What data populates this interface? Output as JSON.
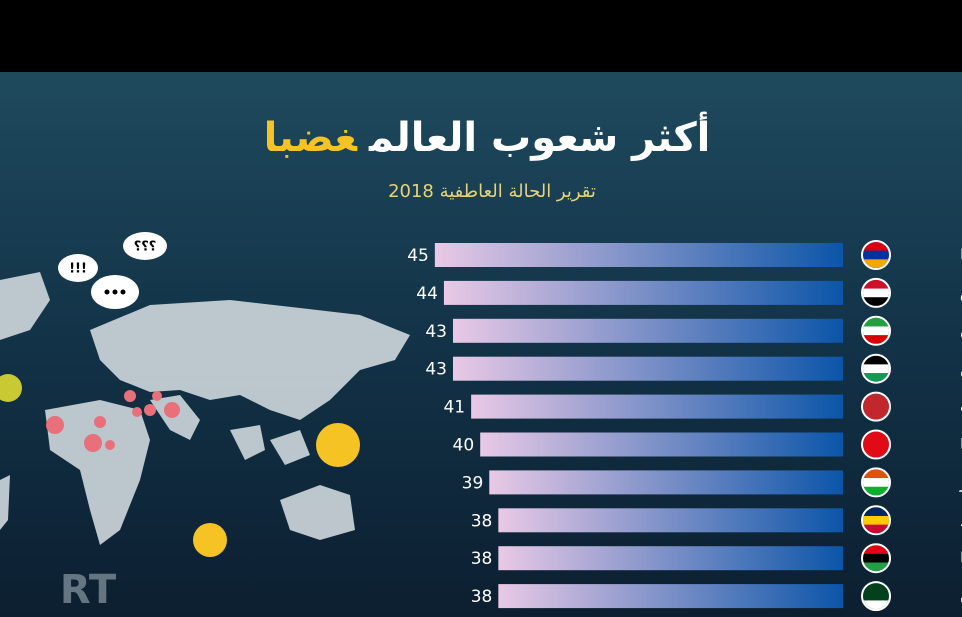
{
  "chart_data": {
    "type": "bar",
    "orientation": "horizontal",
    "title": "أكثر شعوب العالم",
    "title_highlight": "غضبا",
    "subtitle": "تقرير الحالة العاطفية 2018",
    "categories": [
      "أرمينيا",
      "العراق",
      "إيران",
      "فلسطين",
      "المغرب",
      "تركيا",
      "النيجر",
      "تشاد",
      "ليبيا",
      "باكستان"
    ],
    "values": [
      45,
      44,
      43,
      43,
      41,
      40,
      39,
      38,
      38,
      38
    ],
    "bar_color_start": "#e9c9e6",
    "bar_color_end": "#0b55a8",
    "title_color": "#ffffff",
    "highlight_color": "#f5c324",
    "subtitle_color": "#e8d27a",
    "annotations": [
      "!!!",
      "؟؟؟"
    ],
    "watermark": "RT"
  }
}
